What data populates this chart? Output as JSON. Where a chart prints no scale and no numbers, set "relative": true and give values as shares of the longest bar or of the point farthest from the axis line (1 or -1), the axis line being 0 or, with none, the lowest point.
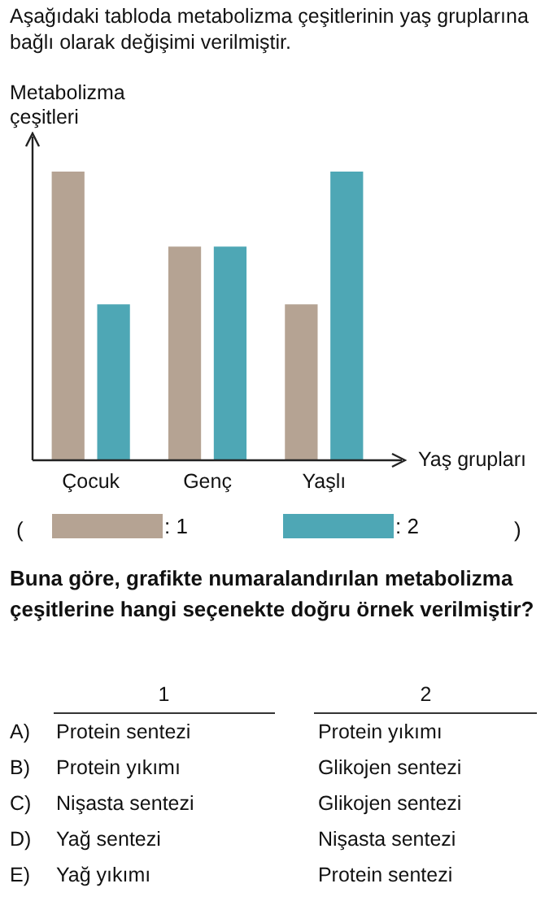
{
  "chart_data": {
    "type": "bar",
    "title": "Aşağıdaki tabloda metabolizma çeşitlerinin yaş gruplarına bağlı olarak değişimi verilmiştir.",
    "ylabel": "Metabolizma çeşitleri",
    "xlabel": "Yaş grupları",
    "relative": true,
    "legend": "bottom",
    "categories": [
      "Çocuk",
      "Genç",
      "Yaşlı"
    ],
    "series": [
      {
        "name": ": 1",
        "color": "#b5a393",
        "values": [
          1,
          0.74,
          0.54
        ]
      },
      {
        "name": ": 2",
        "color": "#4ea7b5",
        "values": [
          0.54,
          0.74,
          1
        ]
      }
    ],
    "annotations": [
      "(",
      ")",
      "Buna göre, grafikte numaralandırılan metabolizma çeşitlerine hangi seçenekte doğru örnek verilmiştir?",
      "1",
      "2",
      "A)",
      "Protein sentezi",
      "Protein yıkımı",
      "B)",
      "Protein yıkımı",
      "Glikojen sentezi",
      "C)",
      "Nişasta sentezi",
      "Glikojen sentezi",
      "D)",
      "Yağ sentezi",
      "Nişasta sentezi",
      "E)",
      "Yağ yıkımı",
      "Protein sentezi"
    ]
  }
}
